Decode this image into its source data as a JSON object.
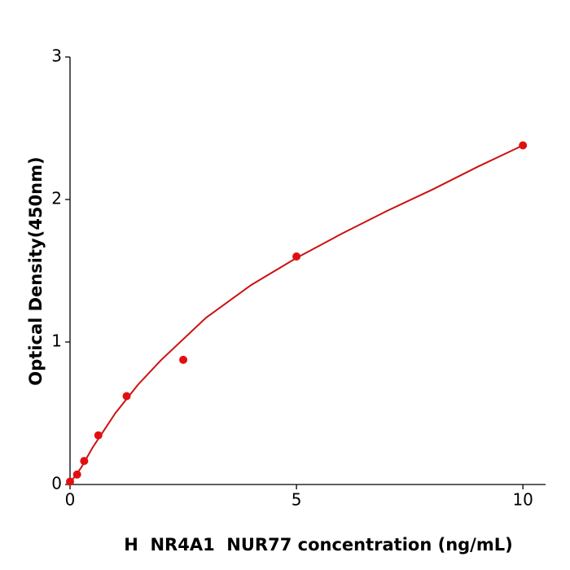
{
  "chart_data": {
    "type": "scatter",
    "x_label": "H  NR4A1  NUR77 concentration (ng/mL)",
    "y_label": "Optical Density(450nm)",
    "xlim": [
      0,
      10.5
    ],
    "xticks": [
      0,
      5,
      10
    ],
    "ylim": [
      0,
      3
    ],
    "yticks": [
      0,
      1,
      2,
      3
    ],
    "series": [
      {
        "mode": "markers",
        "color": "#e01010",
        "x": [
          0,
          0.156,
          0.3125,
          0.625,
          1.25,
          2.5,
          5,
          10
        ],
        "values": [
          0.02,
          0.07,
          0.165,
          0.345,
          0.62,
          0.875,
          1.6,
          2.38
        ]
      },
      {
        "mode": "line",
        "color": "#cc1111",
        "x": [
          0,
          0.25,
          0.5,
          1,
          1.5,
          2,
          3,
          4,
          5,
          6,
          7,
          8,
          9,
          10
        ],
        "values": [
          0.01,
          0.12,
          0.26,
          0.5,
          0.7,
          0.87,
          1.17,
          1.4,
          1.59,
          1.76,
          1.92,
          2.07,
          2.23,
          2.38
        ]
      }
    ]
  }
}
